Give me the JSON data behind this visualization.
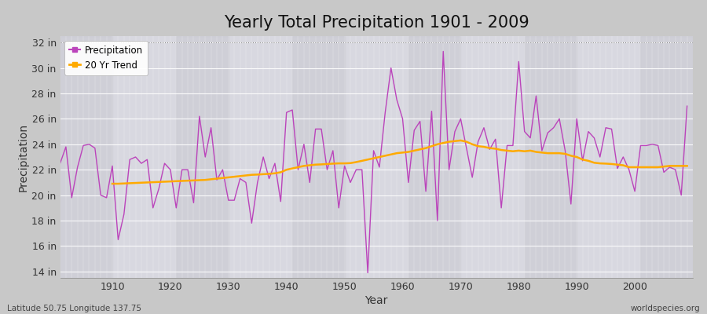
{
  "title": "Yearly Total Precipitation 1901 - 2009",
  "xlabel": "Year",
  "ylabel": "Precipitation",
  "y_tick_labels": [
    "14 in",
    "16 in",
    "18 in",
    "20 in",
    "22 in",
    "24 in",
    "26 in",
    "28 in",
    "30 in",
    "32 in"
  ],
  "y_tick_values": [
    14,
    16,
    18,
    20,
    22,
    24,
    26,
    28,
    30,
    32
  ],
  "ylim": [
    13.5,
    32.5
  ],
  "xlim": [
    1901,
    2010
  ],
  "x_ticks": [
    1910,
    1920,
    1930,
    1940,
    1950,
    1960,
    1970,
    1980,
    1990,
    2000
  ],
  "precip_color": "#bb44bb",
  "trend_color": "#ffaa00",
  "fig_bg_color": "#c8c8c8",
  "plot_bg_color": "#d8d8e0",
  "stripe_color": "#cccccc",
  "grid_color": "#e8e8e8",
  "title_fontsize": 15,
  "axis_label_fontsize": 10,
  "tick_fontsize": 9,
  "footer_left": "Latitude 50.75 Longitude 137.75",
  "footer_right": "worldspecies.org",
  "years": [
    1901,
    1902,
    1903,
    1904,
    1905,
    1906,
    1907,
    1908,
    1909,
    1910,
    1911,
    1912,
    1913,
    1914,
    1915,
    1916,
    1917,
    1918,
    1919,
    1920,
    1921,
    1922,
    1923,
    1924,
    1925,
    1926,
    1927,
    1928,
    1929,
    1930,
    1931,
    1932,
    1933,
    1934,
    1935,
    1936,
    1937,
    1938,
    1939,
    1940,
    1941,
    1942,
    1943,
    1944,
    1945,
    1946,
    1947,
    1948,
    1949,
    1950,
    1951,
    1952,
    1953,
    1954,
    1955,
    1956,
    1957,
    1958,
    1959,
    1960,
    1961,
    1962,
    1963,
    1964,
    1965,
    1966,
    1967,
    1968,
    1969,
    1970,
    1971,
    1972,
    1973,
    1974,
    1975,
    1976,
    1977,
    1978,
    1979,
    1980,
    1981,
    1982,
    1983,
    1984,
    1985,
    1986,
    1987,
    1988,
    1989,
    1990,
    1991,
    1992,
    1993,
    1994,
    1995,
    1996,
    1997,
    1998,
    1999,
    2000,
    2001,
    2002,
    2003,
    2004,
    2005,
    2006,
    2007,
    2008,
    2009
  ],
  "precipitation": [
    22.5,
    23.8,
    19.8,
    22.2,
    23.9,
    24.0,
    23.7,
    20.0,
    19.8,
    22.3,
    16.5,
    18.5,
    22.8,
    23.0,
    22.5,
    22.8,
    19.0,
    20.5,
    22.5,
    22.0,
    19.0,
    22.0,
    22.0,
    19.4,
    26.2,
    23.0,
    25.3,
    21.2,
    22.0,
    19.6,
    19.6,
    21.3,
    21.0,
    17.8,
    21.0,
    23.0,
    21.3,
    22.5,
    19.5,
    26.5,
    26.7,
    22.0,
    24.0,
    21.0,
    25.2,
    25.2,
    22.0,
    23.5,
    19.0,
    22.3,
    21.0,
    22.0,
    22.0,
    13.9,
    23.5,
    22.2,
    26.5,
    30.0,
    27.5,
    26.0,
    21.0,
    25.1,
    25.8,
    20.3,
    26.6,
    18.0,
    31.3,
    22.0,
    25.0,
    26.0,
    23.7,
    21.4,
    24.2,
    25.3,
    23.6,
    24.4,
    19.0,
    23.9,
    23.9,
    30.5,
    25.0,
    24.5,
    27.8,
    23.5,
    24.9,
    25.3,
    26.0,
    23.5,
    19.3,
    26.0,
    22.7,
    25.0,
    24.5,
    23.0,
    25.3,
    25.2,
    22.1,
    23.0,
    22.0,
    20.3,
    23.9,
    23.9,
    24.0,
    23.9,
    21.8,
    22.2,
    22.0,
    20.0,
    27.0
  ],
  "trend": [
    null,
    null,
    null,
    null,
    null,
    null,
    null,
    null,
    null,
    20.9,
    20.9,
    20.92,
    20.94,
    20.96,
    20.98,
    21.0,
    21.02,
    21.04,
    21.06,
    21.08,
    21.1,
    21.12,
    21.14,
    21.16,
    21.18,
    21.2,
    21.25,
    21.3,
    21.35,
    21.4,
    21.45,
    21.5,
    21.55,
    21.6,
    21.62,
    21.65,
    21.68,
    21.72,
    21.8,
    22.0,
    22.1,
    22.2,
    22.3,
    22.35,
    22.4,
    22.42,
    22.45,
    22.48,
    22.5,
    22.5,
    22.52,
    22.6,
    22.7,
    22.8,
    22.9,
    23.0,
    23.1,
    23.2,
    23.3,
    23.35,
    23.4,
    23.5,
    23.6,
    23.7,
    23.85,
    24.0,
    24.1,
    24.2,
    24.25,
    24.3,
    24.2,
    24.0,
    23.85,
    23.8,
    23.7,
    23.65,
    23.55,
    23.5,
    23.45,
    23.5,
    23.45,
    23.5,
    23.4,
    23.35,
    23.3,
    23.3,
    23.3,
    23.25,
    23.1,
    23.0,
    22.8,
    22.7,
    22.55,
    22.5,
    22.48,
    22.45,
    22.4,
    22.35,
    22.2,
    22.2,
    22.2,
    22.2,
    22.2,
    22.2,
    22.25,
    22.3,
    22.3,
    22.3,
    22.3
  ]
}
